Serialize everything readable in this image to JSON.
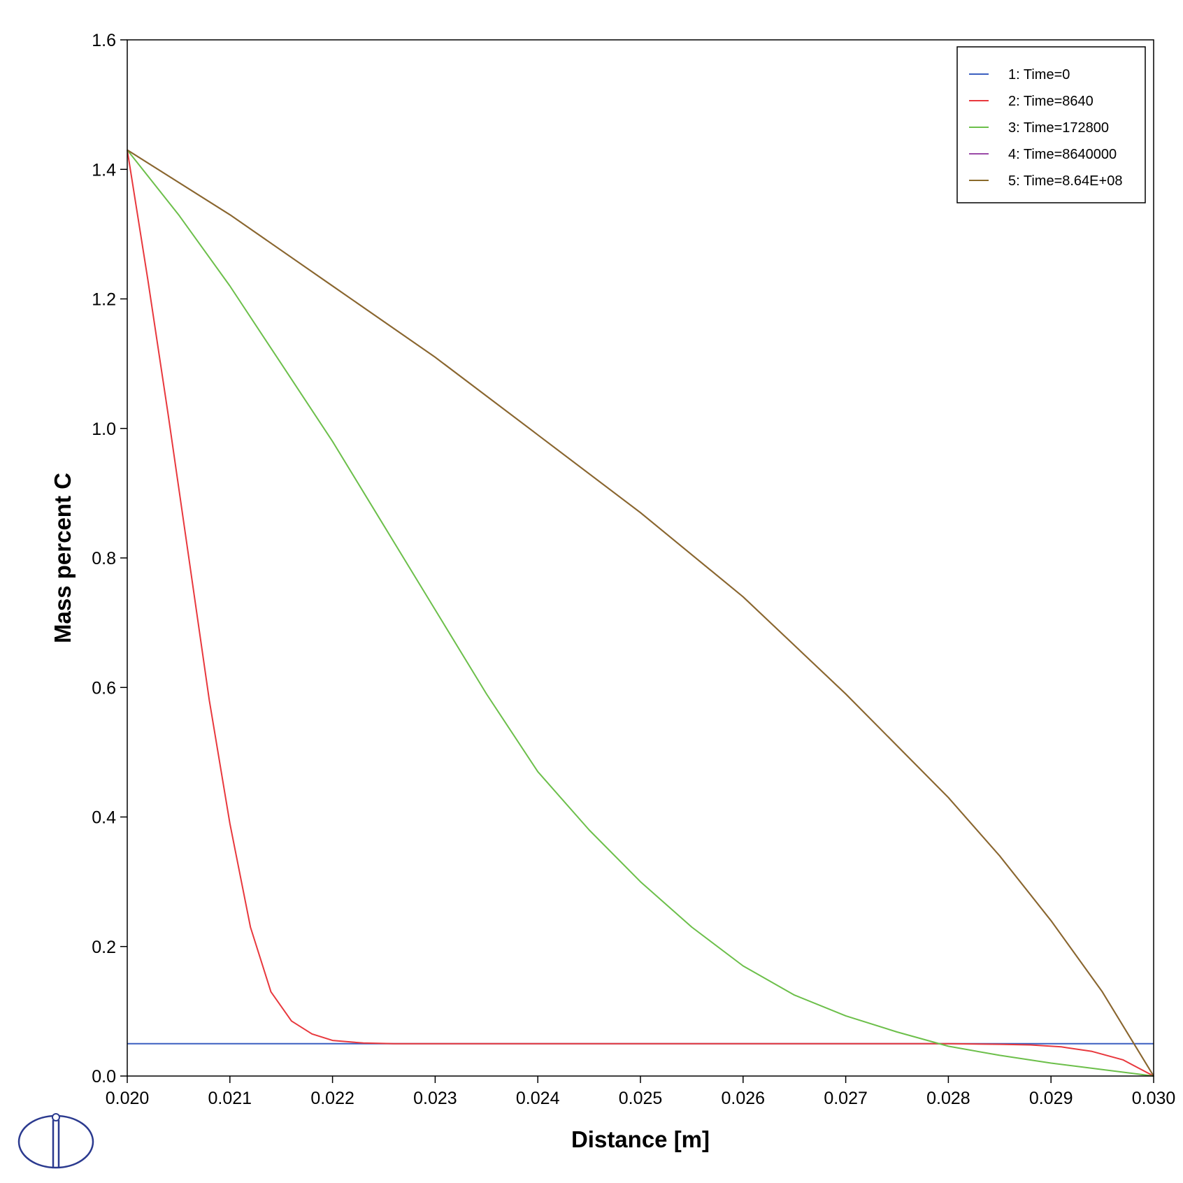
{
  "chart_data": {
    "type": "line",
    "title": "",
    "xlabel": "Distance [m]",
    "ylabel": "Mass percent C",
    "xlim": [
      0.02,
      0.03
    ],
    "ylim": [
      0.0,
      1.6
    ],
    "xticks": [
      0.02,
      0.021,
      0.022,
      0.023,
      0.024,
      0.025,
      0.026,
      0.027,
      0.028,
      0.029,
      0.03
    ],
    "xtick_labels": [
      "0.020",
      "0.021",
      "0.022",
      "0.023",
      "0.024",
      "0.025",
      "0.026",
      "0.027",
      "0.028",
      "0.029",
      "0.030"
    ],
    "yticks": [
      0.0,
      0.2,
      0.4,
      0.6,
      0.8,
      1.0,
      1.2,
      1.4,
      1.6
    ],
    "ytick_labels": [
      "0.0",
      "0.2",
      "0.4",
      "0.6",
      "0.8",
      "1.0",
      "1.2",
      "1.4",
      "1.6"
    ],
    "grid": false,
    "legend_position": "top-right",
    "series": [
      {
        "name": "1:  Time=0",
        "color": "#3b5fc0",
        "x": [
          0.02,
          0.03
        ],
        "y": [
          0.05,
          0.05
        ]
      },
      {
        "name": "2:  Time=8640",
        "color": "#e8383d",
        "x": [
          0.02,
          0.0202,
          0.0204,
          0.0206,
          0.0208,
          0.021,
          0.0212,
          0.0214,
          0.0216,
          0.0218,
          0.022,
          0.0223,
          0.0226,
          0.023,
          0.025,
          0.027,
          0.028,
          0.0285,
          0.0288,
          0.0291,
          0.0294,
          0.0297,
          0.03
        ],
        "y": [
          1.43,
          1.23,
          1.02,
          0.8,
          0.58,
          0.39,
          0.23,
          0.13,
          0.085,
          0.065,
          0.055,
          0.051,
          0.05,
          0.05,
          0.05,
          0.05,
          0.05,
          0.049,
          0.048,
          0.045,
          0.038,
          0.025,
          0.0
        ]
      },
      {
        "name": "3:  Time=172800",
        "color": "#6cbf4a",
        "x": [
          0.02,
          0.0205,
          0.021,
          0.0215,
          0.022,
          0.0225,
          0.023,
          0.0235,
          0.024,
          0.0245,
          0.025,
          0.0255,
          0.026,
          0.0265,
          0.027,
          0.0275,
          0.028,
          0.0285,
          0.029,
          0.0295,
          0.03
        ],
        "y": [
          1.43,
          1.33,
          1.22,
          1.1,
          0.98,
          0.85,
          0.72,
          0.59,
          0.47,
          0.38,
          0.3,
          0.23,
          0.17,
          0.125,
          0.093,
          0.068,
          0.046,
          0.032,
          0.02,
          0.01,
          0.0
        ]
      },
      {
        "name": "4:  Time=8640000",
        "color": "#9b4aa8",
        "x": [
          0.02,
          0.021,
          0.022,
          0.023,
          0.024,
          0.025,
          0.026,
          0.027,
          0.028,
          0.0285,
          0.029,
          0.0295,
          0.03
        ],
        "y": [
          1.43,
          1.33,
          1.22,
          1.11,
          0.99,
          0.87,
          0.74,
          0.59,
          0.43,
          0.34,
          0.24,
          0.13,
          0.0
        ]
      },
      {
        "name": "5:  Time=8.64E+08",
        "color": "#8a6a2a",
        "x": [
          0.02,
          0.021,
          0.022,
          0.023,
          0.024,
          0.025,
          0.026,
          0.027,
          0.028,
          0.0285,
          0.029,
          0.0295,
          0.03
        ],
        "y": [
          1.43,
          1.33,
          1.22,
          1.11,
          0.99,
          0.87,
          0.74,
          0.59,
          0.43,
          0.34,
          0.24,
          0.13,
          0.0
        ]
      }
    ]
  },
  "logo": {
    "name": "thermo-calc-logo",
    "color": "#2b3a8f"
  }
}
